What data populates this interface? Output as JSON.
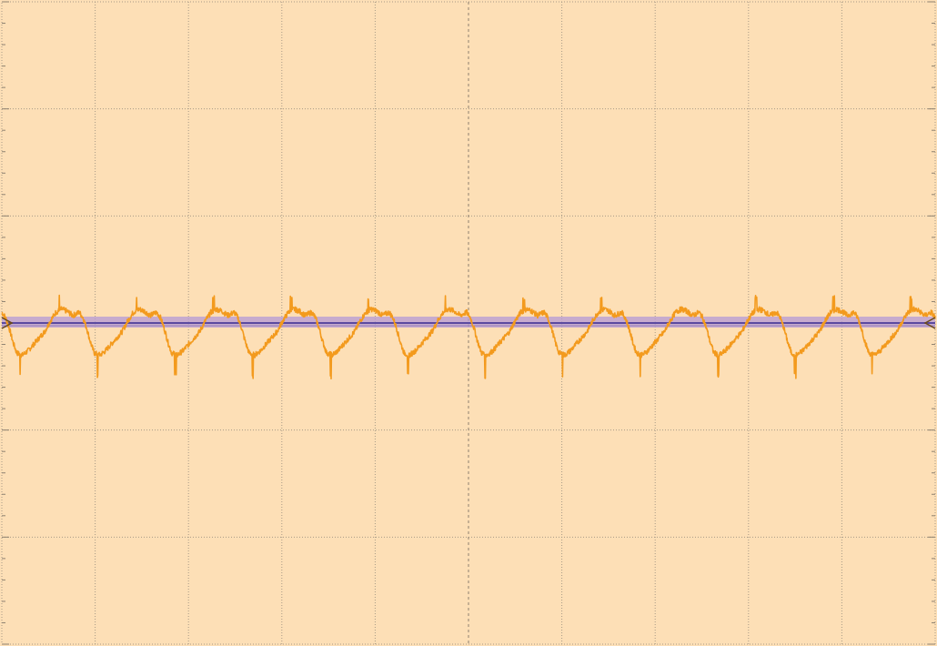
{
  "chart_data": {
    "type": "line",
    "title": "",
    "xlabel": "",
    "ylabel": "",
    "grid": true,
    "x_divisions": 10,
    "y_divisions": 6,
    "xlim": [
      0,
      10
    ],
    "ylim": [
      -3,
      3
    ],
    "colors": {
      "background": "#fddfb6",
      "grid": "#a89a86",
      "axis": "#8f8270",
      "signal": "#f39a1d",
      "reference": "#5b4aa0",
      "reference_band": "#b49ad6",
      "marker": "#6a4a18"
    },
    "reference_level": 0,
    "series": [
      {
        "name": "",
        "period_div": 0.83,
        "phase_div": 0.0,
        "waveform_div": [
          [
            0.0,
            0.1
          ],
          [
            0.04,
            0.05
          ],
          [
            0.08,
            -0.05
          ],
          [
            0.12,
            -0.18
          ],
          [
            0.16,
            -0.28
          ],
          [
            0.22,
            -0.3
          ],
          [
            0.28,
            -0.26
          ],
          [
            0.34,
            -0.2
          ],
          [
            0.4,
            -0.14
          ],
          [
            0.46,
            -0.08
          ],
          [
            0.52,
            0.02
          ],
          [
            0.58,
            0.1
          ],
          [
            0.64,
            0.13
          ],
          [
            0.7,
            0.11
          ],
          [
            0.76,
            0.07
          ],
          [
            0.83,
            0.1
          ]
        ]
      }
    ]
  }
}
